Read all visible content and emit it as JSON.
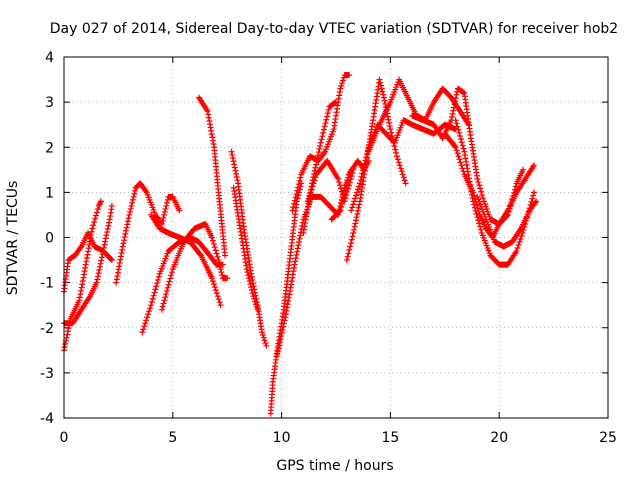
{
  "chart_data": {
    "type": "scatter",
    "title": "Day 027 of 2014, Sidereal Day-to-day VTEC variation (SDTVAR) for receiver hob2",
    "xlabel": "GPS time / hours",
    "ylabel": "SDTVAR / TECUs",
    "xlim": [
      0,
      25
    ],
    "ylim": [
      -4,
      4
    ],
    "xticks": [
      "0",
      "5",
      "10",
      "15",
      "20",
      "25"
    ],
    "yticks": [
      "-4",
      "-3",
      "-2",
      "-1",
      "0",
      "1",
      "2",
      "3",
      "4"
    ],
    "grid": true,
    "marker": "plus",
    "color": "#ff0000",
    "series": [
      {
        "name": "s1",
        "points": [
          [
            0.0,
            -1.2
          ],
          [
            0.2,
            -0.5
          ],
          [
            0.5,
            -0.4
          ],
          [
            0.8,
            -0.2
          ],
          [
            1.1,
            0.1
          ],
          [
            1.4,
            -0.2
          ],
          [
            1.8,
            -0.3
          ],
          [
            2.2,
            -0.5
          ]
        ]
      },
      {
        "name": "s2",
        "points": [
          [
            0.0,
            -2.5
          ],
          [
            0.3,
            -1.8
          ],
          [
            0.7,
            -1.4
          ],
          [
            1.0,
            -0.6
          ],
          [
            1.3,
            0.2
          ],
          [
            1.6,
            0.7
          ],
          [
            1.7,
            0.8
          ]
        ]
      },
      {
        "name": "s3",
        "points": [
          [
            0.0,
            -1.9
          ],
          [
            0.4,
            -1.9
          ],
          [
            0.8,
            -1.6
          ],
          [
            1.2,
            -1.3
          ],
          [
            1.5,
            -1.0
          ],
          [
            1.8,
            -0.3
          ],
          [
            2.1,
            0.4
          ],
          [
            2.2,
            0.7
          ]
        ]
      },
      {
        "name": "s4",
        "points": [
          [
            2.4,
            -1.0
          ],
          [
            2.7,
            -0.2
          ],
          [
            3.0,
            0.5
          ],
          [
            3.3,
            1.1
          ],
          [
            3.5,
            1.2
          ],
          [
            3.8,
            1.0
          ],
          [
            4.2,
            0.5
          ],
          [
            4.5,
            0.3
          ],
          [
            4.8,
            0.9
          ],
          [
            5.0,
            0.9
          ],
          [
            5.3,
            0.6
          ]
        ]
      },
      {
        "name": "s5",
        "points": [
          [
            3.6,
            -2.1
          ],
          [
            4.0,
            -1.5
          ],
          [
            4.4,
            -0.8
          ],
          [
            4.8,
            -0.3
          ],
          [
            5.3,
            -0.1
          ],
          [
            5.8,
            0.0
          ],
          [
            6.2,
            -0.1
          ],
          [
            6.7,
            -0.4
          ],
          [
            7.0,
            -0.6
          ],
          [
            7.3,
            -0.6
          ]
        ]
      },
      {
        "name": "s6",
        "points": [
          [
            4.5,
            -1.6
          ],
          [
            5.0,
            -0.7
          ],
          [
            5.5,
            -0.1
          ],
          [
            6.0,
            0.2
          ],
          [
            6.5,
            0.3
          ],
          [
            6.8,
            0.0
          ],
          [
            7.1,
            -0.5
          ],
          [
            7.3,
            -0.9
          ],
          [
            7.5,
            -0.9
          ]
        ]
      },
      {
        "name": "s7",
        "points": [
          [
            4.0,
            0.5
          ],
          [
            4.4,
            0.2
          ],
          [
            4.8,
            0.1
          ],
          [
            5.3,
            0.0
          ],
          [
            5.8,
            -0.1
          ],
          [
            6.3,
            -0.4
          ],
          [
            6.8,
            -0.9
          ],
          [
            7.2,
            -1.5
          ]
        ]
      },
      {
        "name": "s8",
        "points": [
          [
            6.2,
            3.1
          ],
          [
            6.6,
            2.8
          ],
          [
            6.9,
            2.0
          ],
          [
            7.1,
            1.0
          ],
          [
            7.3,
            0.1
          ],
          [
            7.4,
            -0.4
          ]
        ]
      },
      {
        "name": "s9",
        "points": [
          [
            7.7,
            1.9
          ],
          [
            8.0,
            1.2
          ],
          [
            8.3,
            0.1
          ],
          [
            8.6,
            -0.8
          ],
          [
            8.9,
            -1.5
          ],
          [
            9.1,
            -2.1
          ],
          [
            9.3,
            -2.4
          ]
        ]
      },
      {
        "name": "s10",
        "points": [
          [
            7.8,
            1.1
          ],
          [
            8.1,
            0.2
          ],
          [
            8.4,
            -0.7
          ],
          [
            8.7,
            -1.3
          ],
          [
            8.9,
            -1.6
          ]
        ]
      },
      {
        "name": "s11",
        "points": [
          [
            9.5,
            -3.9
          ],
          [
            9.6,
            -3.2
          ],
          [
            9.8,
            -2.5
          ],
          [
            10.1,
            -1.6
          ],
          [
            10.4,
            -0.4
          ],
          [
            10.7,
            0.8
          ],
          [
            10.9,
            1.2
          ]
        ]
      },
      {
        "name": "s12",
        "points": [
          [
            9.8,
            -2.6
          ],
          [
            10.2,
            -1.7
          ],
          [
            10.6,
            -0.6
          ],
          [
            11.0,
            0.4
          ],
          [
            11.4,
            0.9
          ],
          [
            11.8,
            0.9
          ],
          [
            12.2,
            0.7
          ],
          [
            12.6,
            0.5
          ],
          [
            12.9,
            1.1
          ],
          [
            13.2,
            1.5
          ]
        ]
      },
      {
        "name": "s13",
        "points": [
          [
            10.5,
            0.6
          ],
          [
            10.9,
            1.4
          ],
          [
            11.3,
            1.8
          ],
          [
            11.7,
            1.7
          ],
          [
            12.0,
            1.9
          ],
          [
            12.4,
            2.4
          ],
          [
            12.7,
            3.3
          ],
          [
            12.9,
            3.6
          ],
          [
            13.1,
            3.6
          ]
        ]
      },
      {
        "name": "s14",
        "points": [
          [
            11.0,
            0.1
          ],
          [
            11.4,
            1.2
          ],
          [
            11.8,
            2.1
          ],
          [
            12.2,
            2.9
          ],
          [
            12.5,
            3.0
          ]
        ]
      },
      {
        "name": "s15",
        "points": [
          [
            11.2,
            0.8
          ],
          [
            11.6,
            1.4
          ],
          [
            12.1,
            1.7
          ],
          [
            12.6,
            1.3
          ],
          [
            12.9,
            0.8
          ],
          [
            13.3,
            1.5
          ]
        ]
      },
      {
        "name": "s16",
        "points": [
          [
            12.3,
            0.4
          ],
          [
            12.7,
            0.6
          ],
          [
            13.1,
            1.4
          ],
          [
            13.5,
            1.7
          ],
          [
            13.8,
            1.5
          ],
          [
            14.0,
            1.7
          ]
        ]
      },
      {
        "name": "s17",
        "points": [
          [
            13.0,
            -0.5
          ],
          [
            13.3,
            0.1
          ],
          [
            13.6,
            0.8
          ],
          [
            13.9,
            1.7
          ],
          [
            14.2,
            2.6
          ],
          [
            14.5,
            3.5
          ],
          [
            14.7,
            3.1
          ],
          [
            15.0,
            2.4
          ],
          [
            15.3,
            1.8
          ],
          [
            15.7,
            1.2
          ]
        ]
      },
      {
        "name": "s18",
        "points": [
          [
            13.2,
            0.6
          ],
          [
            13.6,
            1.2
          ],
          [
            14.0,
            2.0
          ],
          [
            14.4,
            2.5
          ],
          [
            14.8,
            2.3
          ],
          [
            15.2,
            2.1
          ],
          [
            15.6,
            2.6
          ],
          [
            16.0,
            2.5
          ],
          [
            16.5,
            2.4
          ],
          [
            17.0,
            2.3
          ],
          [
            17.5,
            2.5
          ],
          [
            18.0,
            2.4
          ]
        ]
      },
      {
        "name": "s19",
        "points": [
          [
            14.0,
            1.9
          ],
          [
            14.5,
            2.5
          ],
          [
            15.0,
            3.0
          ],
          [
            15.4,
            3.5
          ],
          [
            15.8,
            3.1
          ],
          [
            16.2,
            2.7
          ],
          [
            16.6,
            2.6
          ],
          [
            17.0,
            3.0
          ],
          [
            17.4,
            3.3
          ],
          [
            17.8,
            3.1
          ],
          [
            18.2,
            2.8
          ],
          [
            18.6,
            2.5
          ]
        ]
      },
      {
        "name": "s20",
        "points": [
          [
            16.0,
            2.7
          ],
          [
            16.5,
            2.6
          ],
          [
            17.0,
            2.5
          ],
          [
            17.4,
            2.2
          ],
          [
            17.8,
            2.6
          ],
          [
            18.1,
            3.3
          ],
          [
            18.4,
            3.2
          ],
          [
            18.7,
            2.2
          ],
          [
            19.0,
            1.3
          ],
          [
            19.3,
            0.8
          ],
          [
            19.6,
            0.4
          ],
          [
            20.0,
            0.3
          ],
          [
            20.4,
            0.5
          ],
          [
            20.8,
            1.2
          ],
          [
            21.1,
            1.5
          ]
        ]
      },
      {
        "name": "s21",
        "points": [
          [
            17.5,
            2.3
          ],
          [
            18.0,
            2.0
          ],
          [
            18.4,
            1.4
          ],
          [
            18.8,
            1.0
          ],
          [
            19.1,
            0.5
          ],
          [
            19.4,
            0.2
          ],
          [
            19.7,
            0.0
          ],
          [
            20.0,
            0.3
          ],
          [
            20.4,
            0.6
          ],
          [
            20.8,
            1.0
          ],
          [
            21.2,
            1.3
          ],
          [
            21.6,
            1.6
          ]
        ]
      },
      {
        "name": "s22",
        "points": [
          [
            18.0,
            2.6
          ],
          [
            18.4,
            1.9
          ],
          [
            18.8,
            0.8
          ],
          [
            19.2,
            0.1
          ],
          [
            19.6,
            -0.4
          ],
          [
            20.0,
            -0.6
          ],
          [
            20.4,
            -0.6
          ],
          [
            20.8,
            -0.3
          ],
          [
            21.2,
            0.3
          ],
          [
            21.6,
            1.0
          ]
        ]
      },
      {
        "name": "s23",
        "points": [
          [
            19.0,
            0.9
          ],
          [
            19.4,
            0.4
          ],
          [
            19.8,
            -0.1
          ],
          [
            20.2,
            -0.2
          ],
          [
            20.6,
            -0.1
          ],
          [
            21.0,
            0.2
          ],
          [
            21.4,
            0.6
          ],
          [
            21.7,
            0.8
          ]
        ]
      }
    ]
  }
}
